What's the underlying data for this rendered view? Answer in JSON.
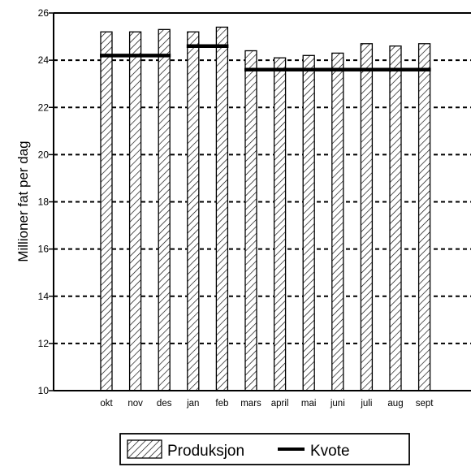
{
  "chart_data": {
    "type": "bar",
    "title": "",
    "xlabel": "",
    "ylabel": "Millioner fat per dag",
    "ylim": [
      10,
      26
    ],
    "yticks": [
      10,
      12,
      14,
      16,
      18,
      20,
      22,
      24,
      26
    ],
    "grid": true,
    "legend_position": "bottom-center",
    "categories": [
      "okt",
      "nov",
      "des",
      "jan",
      "feb",
      "mars",
      "april",
      "mai",
      "juni",
      "juli",
      "aug",
      "sept"
    ],
    "series": [
      {
        "name": "Produksjon",
        "kind": "bar",
        "pattern": "diagonal-hatch",
        "values": [
          25.2,
          25.2,
          25.3,
          25.2,
          25.4,
          24.4,
          24.1,
          24.2,
          24.3,
          24.7,
          24.6,
          24.7
        ]
      },
      {
        "name": "Kvote",
        "kind": "step-line",
        "color": "#000000",
        "segments": [
          {
            "from": "okt",
            "to": "des",
            "value": 24.2
          },
          {
            "from": "jan",
            "to": "feb",
            "value": 24.6
          },
          {
            "from": "mars",
            "to": "sept",
            "value": 23.6
          }
        ]
      }
    ]
  }
}
